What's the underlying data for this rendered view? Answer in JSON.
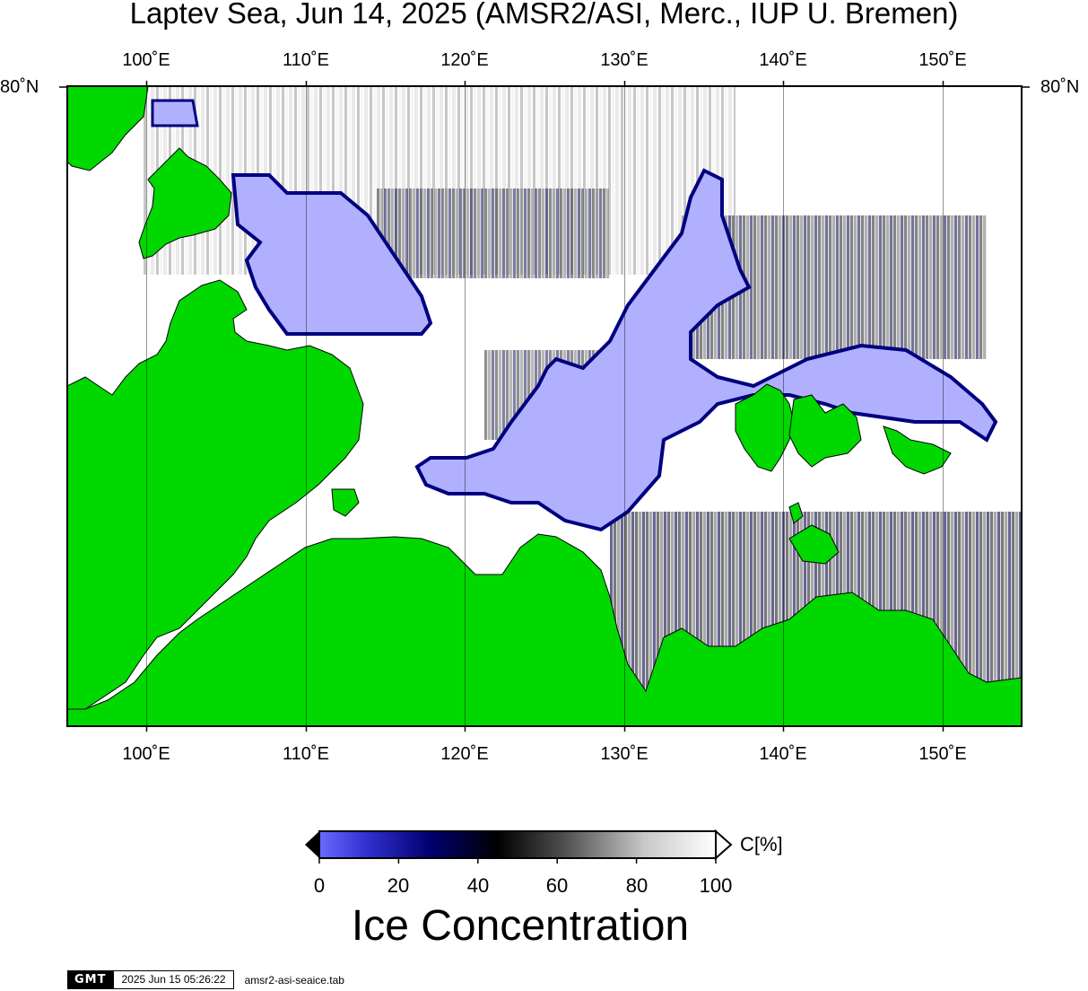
{
  "title": "Laptev Sea, Jun 14, 2025 (AMSR2/ASI, Merc., IUP U. Bremen)",
  "lon_labels": [
    "100˚E",
    "110˚E",
    "120˚E",
    "130˚E",
    "140˚E",
    "150˚E"
  ],
  "lat_label": "80˚N",
  "colorbar": {
    "title": "Ice Concentration",
    "unit": "C[%]",
    "ticks": [
      "0",
      "20",
      "40",
      "60",
      "80",
      "100"
    ]
  },
  "colors": {
    "land": "#00d800",
    "open_water": "#b0b0ff",
    "ice_high": "#ffffff",
    "ice_low": "#000060"
  },
  "footer": {
    "logo": "GMT",
    "timestamp": "2025 Jun 15 05:26:22",
    "source_file": "amsr2-asi-seaice.tab"
  }
}
